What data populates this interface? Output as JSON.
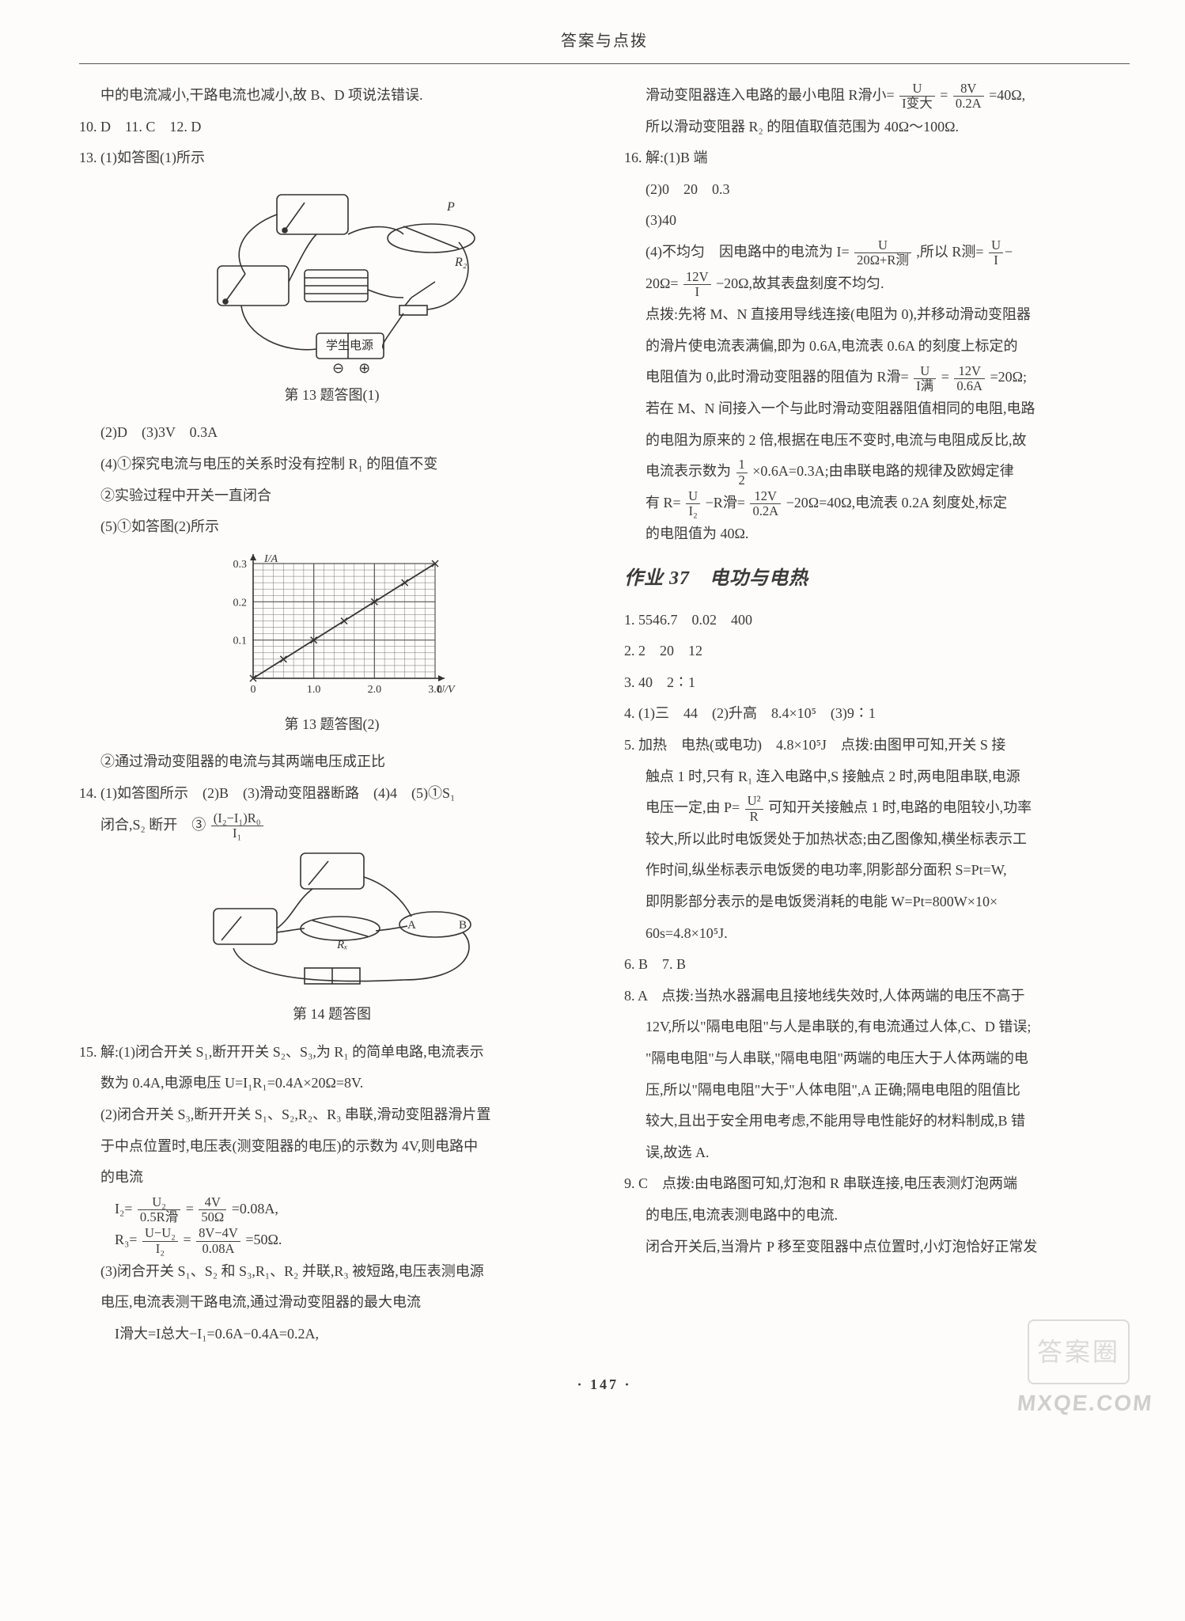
{
  "header": "答案与点拨",
  "pagenum": "· 147 ·",
  "watermark": "MXQE.COM",
  "stamp": "答案圈",
  "left": {
    "p0": "中的电流减小,干路电流也减小,故 B、D 项说法错误.",
    "p1": "10. D　11. C　12. D",
    "p2": "13. (1)如答图(1)所示",
    "fig13_caption": "第 13 题答图(1)",
    "p3": "(2)D　(3)3V　0.3A",
    "p4": "(4)①探究电流与电压的关系时没有控制 R₁ 的阻值不变",
    "p5": "②实验过程中开关一直闭合",
    "p6": "(5)①如答图(2)所示",
    "fig13b_caption": "第 13 题答图(2)",
    "p7": "②通过滑动变阻器的电流与其两端电压成正比",
    "p8": "14. (1)如答图所示　(2)B　(3)滑动变阻器断路　(4)4　(5)①S₁",
    "p8b_a": "闭合,S₂ 断开　③",
    "fig14_caption": "第 14 题答图",
    "p9": "15. 解:(1)闭合开关 S₁,断开开关 S₂、S₃,为 R₁ 的简单电路,电流表示",
    "p9b": "数为 0.4A,电源电压 U=I₁R₁=0.4A×20Ω=8V.",
    "p10": "(2)闭合开关 S₃,断开开关 S₁、S₂,R₂、R₃ 串联,滑动变阻器滑片置",
    "p10b": "于中点位置时,电压表(测变阻器的电压)的示数为 4V,则电路中",
    "p10c": "的电流",
    "p11_a": "I₂=",
    "p11_b": "=",
    "p11_c": "=0.08A,",
    "p12_a": "R₃=",
    "p12_b": "=",
    "p12_c": "=50Ω.",
    "p13": "(3)闭合开关 S₁、S₂ 和 S₃,R₁、R₂ 并联,R₃ 被短路,电压表测电源",
    "p13b": "电压,电流表测干路电流,通过滑动变阻器的最大电流",
    "p14": "I滑大=I总大−I₁=0.6A−0.4A=0.2A,",
    "chart13b": {
      "type": "scatter-line",
      "xlabel": "U/V",
      "ylabel": "I/A",
      "xlim": [
        0,
        3.0
      ],
      "ylim": [
        0,
        0.3
      ],
      "xticks": [
        0,
        1.0,
        2.0,
        3.0
      ],
      "yticks": [
        0,
        0.1,
        0.2,
        0.3
      ],
      "points": [
        [
          0,
          0
        ],
        [
          0.5,
          0.05
        ],
        [
          1.0,
          0.1
        ],
        [
          1.5,
          0.15
        ],
        [
          2.0,
          0.2
        ],
        [
          2.5,
          0.25
        ],
        [
          3.0,
          0.3
        ]
      ],
      "grid_color": "#555",
      "line_color": "#333",
      "background": "#fdfcfa",
      "font_size": 14
    }
  },
  "right": {
    "p1_a": "滑动变阻器连入电路的最小电阻 R滑小=",
    "p1_b": "=",
    "p1_c": "=40Ω,",
    "p2": "所以滑动变阻器 R₂ 的阻值取值范围为 40Ω～100Ω.",
    "p3": "16. 解:(1)B 端",
    "p4": "(2)0　20　0.3",
    "p5": "(3)40",
    "p6_a": "(4)不均匀　因电路中的电流为 I=",
    "p6_b": ",所以 R测=",
    "p7_a": "20Ω=",
    "p7_b": "−20Ω,故其表盘刻度不均匀.",
    "p8": "点拨:先将 M、N 直接用导线连接(电阻为 0),并移动滑动变阻器",
    "p8b": "的滑片使电流表满偏,即为 0.6A,电流表 0.6A 的刻度上标定的",
    "p8c_a": "电阻值为 0,此时滑动变阻器的阻值为 R滑=",
    "p8c_b": "=",
    "p8c_c": "=20Ω;",
    "p9": "若在 M、N 间接入一个与此时滑动变阻器阻值相同的电阻,电路",
    "p9b": "的电阻为原来的 2 倍,根据在电压不变时,电流与电阻成反比,故",
    "p9c_a": "电流表示数为",
    "p9c_b": "×0.6A=0.3A;由串联电路的规律及欧姆定律",
    "p10_a": "有 R=",
    "p10_b": "−R滑=",
    "p10_c": "−20Ω=40Ω,电流表 0.2A 刻度处,标定",
    "p10d": "的电阻值为 40Ω.",
    "section37_title": "作业 37　电功与电热",
    "q1": "1. 5546.7　0.02　400",
    "q2": "2. 2　20　12",
    "q3": "3. 40　2∶1",
    "q4": "4. (1)三　44　(2)升高　8.4×10⁵　(3)9∶1",
    "q5": "5. 加热　电热(或电功)　4.8×10⁵J　点拨:由图甲可知,开关 S 接",
    "q5b": "触点 1 时,只有 R₁ 连入电路中,S 接触点 2 时,两电阻串联,电源",
    "q5c_a": "电压一定,由 P=",
    "q5c_b": "可知开关接触点 1 时,电路的电阻较小,功率",
    "q5d": "较大,所以此时电饭煲处于加热状态;由乙图像知,横坐标表示工",
    "q5e": "作时间,纵坐标表示电饭煲的电功率,阴影部分面积 S=Pt=W,",
    "q5f": "即阴影部分表示的是电饭煲消耗的电能 W=Pt=800W×10×",
    "q5g": "60s=4.8×10⁵J.",
    "q6": "6. B　7. B",
    "q8": "8. A　点拨:当热水器漏电且接地线失效时,人体两端的电压不高于",
    "q8b": "12V,所以\"隔电电阻\"与人是串联的,有电流通过人体,C、D 错误;",
    "q8c": "\"隔电电阻\"与人串联,\"隔电电阻\"两端的电压大于人体两端的电",
    "q8d": "压,所以\"隔电电阻\"大于\"人体电阻\",A 正确;隔电电阻的阻值比",
    "q8e": "较大,且出于安全用电考虑,不能用导电性能好的材料制成,B 错",
    "q8f": "误,故选 A.",
    "q9": "9. C　点拨:由电路图可知,灯泡和 R 串联连接,电压表测灯泡两端",
    "q9b": "的电压,电流表测电路中的电流.",
    "q9c": "闭合开关后,当滑片 P 移至变阻器中点位置时,小灯泡恰好正常发"
  },
  "circuit_labels": {
    "ps": "学生电源",
    "rheostat": "R₂",
    "p": "P",
    "rx": "Rₓ",
    "a": "A",
    "b": "B"
  }
}
